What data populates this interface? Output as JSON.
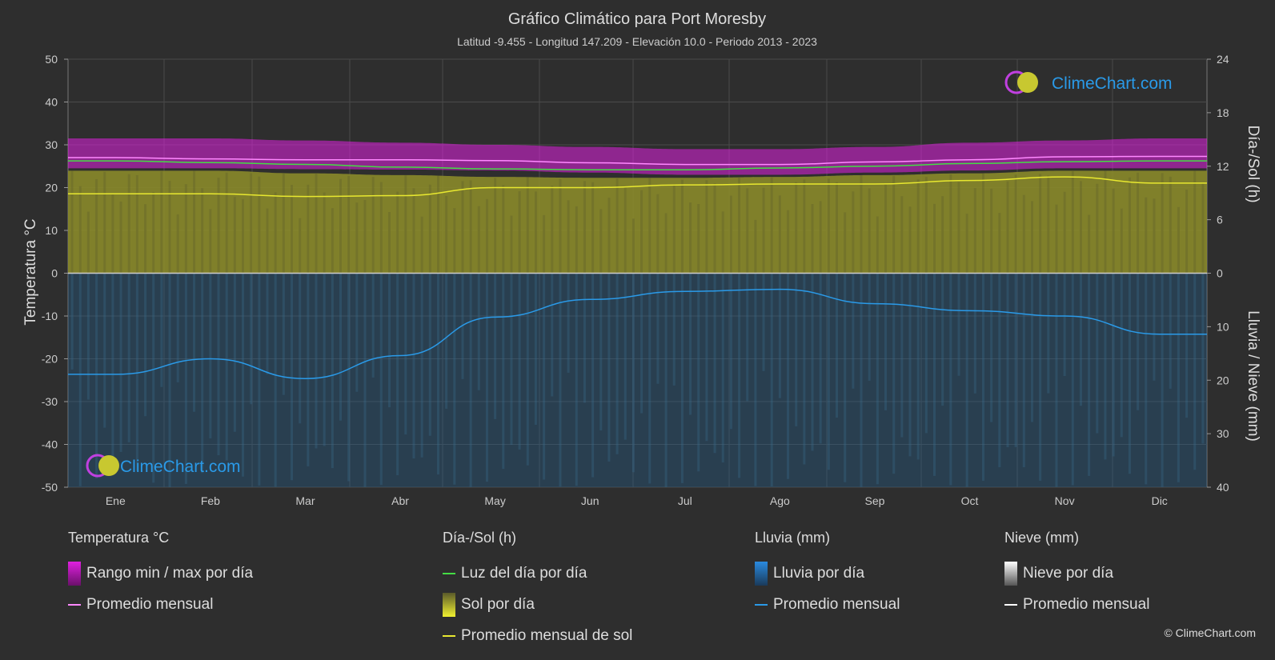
{
  "title": "Gráfico Climático para Port Moresby",
  "subtitle": "Latitud -9.455 - Longitud 147.209 - Elevación 10.0 - Periodo 2013 - 2023",
  "watermark": "ClimeChart.com",
  "copyright": "© ClimeChart.com",
  "axes": {
    "left_label": "Temperatura °C",
    "right_top_label": "Día-/Sol (h)",
    "right_bottom_label": "Lluvia / Nieve (mm)",
    "left_ticks": [
      "50",
      "40",
      "30",
      "20",
      "10",
      "0",
      "-10",
      "-20",
      "-30",
      "-40",
      "-50"
    ],
    "right_top_ticks": [
      "24",
      "18",
      "12",
      "6",
      "0"
    ],
    "right_bottom_ticks": [
      "10",
      "20",
      "30",
      "40"
    ]
  },
  "colors": {
    "background": "#2e2e2e",
    "temp_range": "#e020e0",
    "temp_avg": "#ff88ff",
    "daylight": "#44dd44",
    "sunshine_fill": "#8a8a2a",
    "sunshine_avg": "#e8e830",
    "rain_fill": "#1f5f8f",
    "rain_avg": "#2a9ae8",
    "snow_avg": "#ffffff",
    "watermark": "#2a9ae8"
  },
  "legend": [
    {
      "title": "Temperatura °C",
      "items": [
        {
          "label": "Rango min / max por día",
          "swatch": "box",
          "color": "#e020e0"
        },
        {
          "label": "Promedio mensual",
          "swatch": "line",
          "color": "#ff88ff"
        }
      ]
    },
    {
      "title": "Día-/Sol (h)",
      "items": [
        {
          "label": "Luz del día por día",
          "swatch": "line",
          "color": "#44dd44"
        },
        {
          "label": "Sol por día",
          "swatch": "box",
          "color": "#d8d830"
        },
        {
          "label": "Promedio mensual de sol",
          "swatch": "line",
          "color": "#e8e830"
        }
      ]
    },
    {
      "title": "Lluvia (mm)",
      "items": [
        {
          "label": "Lluvia por día",
          "swatch": "box",
          "color": "#2a8ae0"
        },
        {
          "label": "Promedio mensual",
          "swatch": "line",
          "color": "#2a9ae8"
        }
      ]
    },
    {
      "title": "Nieve (mm)",
      "items": [
        {
          "label": "Nieve por día",
          "swatch": "box",
          "color": "#eeeeee"
        },
        {
          "label": "Promedio mensual",
          "swatch": "line",
          "color": "#ffffff"
        }
      ]
    }
  ],
  "chart_data": {
    "type": "area",
    "categories": [
      "Ene",
      "Feb",
      "Mar",
      "Abr",
      "May",
      "Jun",
      "Jul",
      "Ago",
      "Sep",
      "Oct",
      "Nov",
      "Dic"
    ],
    "temp_ylim": [
      -50,
      50
    ],
    "sun_ylim": [
      0,
      24
    ],
    "rain_ylim": [
      0,
      40
    ],
    "grid": true,
    "series": [
      {
        "name": "Rango min / max por día",
        "axis": "temp",
        "kind": "band",
        "min": [
          24.5,
          24.5,
          24.3,
          24.2,
          24.0,
          23.5,
          23.0,
          23.0,
          23.5,
          24.0,
          24.5,
          24.5
        ],
        "max": [
          31.5,
          31.5,
          31.0,
          30.5,
          30.0,
          29.5,
          29.0,
          29.0,
          29.5,
          30.5,
          31.0,
          31.5
        ]
      },
      {
        "name": "Promedio mensual",
        "axis": "temp",
        "kind": "line",
        "values": [
          27.0,
          26.7,
          26.5,
          26.5,
          26.3,
          25.8,
          25.4,
          25.4,
          26.0,
          26.5,
          27.2,
          27.3
        ]
      },
      {
        "name": "Luz del día por día",
        "axis": "sun",
        "kind": "line",
        "values": [
          12.6,
          12.4,
          12.2,
          11.9,
          11.7,
          11.6,
          11.6,
          11.8,
          12.0,
          12.3,
          12.5,
          12.6
        ]
      },
      {
        "name": "Sol por día",
        "axis": "sun",
        "kind": "fill",
        "values": [
          11.5,
          11.5,
          11.2,
          11.0,
          10.8,
          10.7,
          10.7,
          10.8,
          11.0,
          11.2,
          11.5,
          11.5
        ]
      },
      {
        "name": "Promedio mensual de sol",
        "axis": "sun",
        "kind": "line",
        "values": [
          8.9,
          8.9,
          8.6,
          8.7,
          9.6,
          9.6,
          9.9,
          10.0,
          10.0,
          10.4,
          10.8,
          10.1
        ]
      },
      {
        "name": "Promedio mensual",
        "axis": "rain",
        "kind": "line",
        "values": [
          18.9,
          16.0,
          19.7,
          15.4,
          8.2,
          4.9,
          3.4,
          3.0,
          5.7,
          7.0,
          8.0,
          11.4
        ]
      }
    ]
  }
}
